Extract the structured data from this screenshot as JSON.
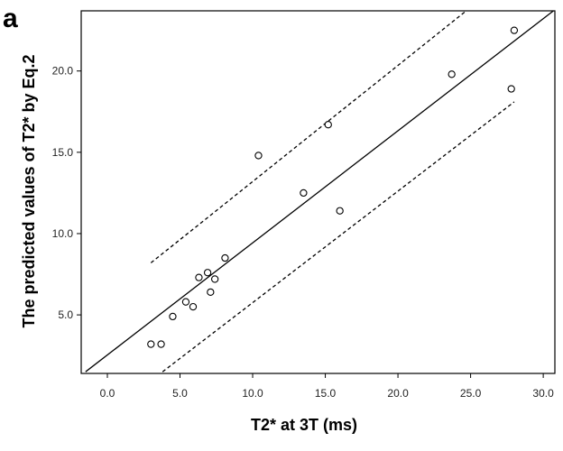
{
  "panel_label": "a",
  "chart_data": {
    "type": "scatter",
    "xlabel": "T2* at 3T (ms)",
    "ylabel": "The predicted values of T2* by Eq.2",
    "xlim": [
      -1.8,
      30.8
    ],
    "ylim": [
      1.4,
      23.7
    ],
    "x_ticks": [
      0,
      5,
      10,
      15,
      20,
      25,
      30
    ],
    "x_tick_labels": [
      "0.0",
      "5.0",
      "10.0",
      "15.0",
      "20.0",
      "25.0",
      "30.0"
    ],
    "y_ticks": [
      5,
      10,
      15,
      20
    ],
    "y_tick_labels": [
      "5.0",
      "10.0",
      "15.0",
      "20.0"
    ],
    "grid": false,
    "points": [
      {
        "x": 3.0,
        "y": 3.2
      },
      {
        "x": 3.7,
        "y": 3.2
      },
      {
        "x": 4.5,
        "y": 4.9
      },
      {
        "x": 5.4,
        "y": 5.8
      },
      {
        "x": 5.9,
        "y": 5.5
      },
      {
        "x": 6.3,
        "y": 7.3
      },
      {
        "x": 6.9,
        "y": 7.6
      },
      {
        "x": 7.1,
        "y": 6.4
      },
      {
        "x": 7.4,
        "y": 7.2
      },
      {
        "x": 8.1,
        "y": 8.5
      },
      {
        "x": 10.4,
        "y": 14.8
      },
      {
        "x": 13.5,
        "y": 12.5
      },
      {
        "x": 15.2,
        "y": 16.7
      },
      {
        "x": 16.0,
        "y": 11.4
      },
      {
        "x": 23.7,
        "y": 19.8
      },
      {
        "x": 27.8,
        "y": 18.9
      },
      {
        "x": 28.0,
        "y": 22.5
      }
    ],
    "fit_line": [
      [
        -1.5,
        1.5
      ],
      [
        30.7,
        23.7
      ]
    ],
    "upper_band": [
      [
        3.0,
        8.2
      ],
      [
        24.7,
        23.7
      ]
    ],
    "lower_band": [
      [
        3.8,
        1.5
      ],
      [
        28.0,
        18.1
      ]
    ]
  }
}
